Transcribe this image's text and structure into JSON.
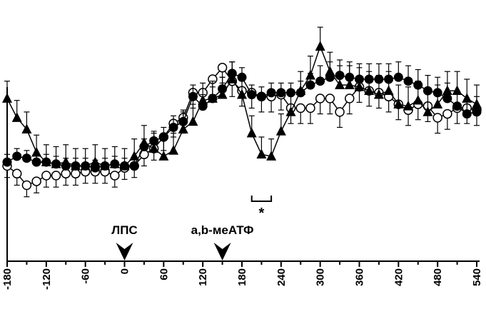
{
  "chart_data": {
    "type": "line",
    "x_ticks": [
      -180,
      -120,
      -60,
      0,
      60,
      120,
      180,
      240,
      300,
      360,
      420,
      480,
      540
    ],
    "xlim": [
      -180,
      540
    ],
    "ylim": [
      0,
      100
    ],
    "grid": false,
    "annotations": {
      "lps_label": "ЛПС",
      "lps_x": 0,
      "atp_label": "a,b-меАТФ",
      "atp_x": 150,
      "significance_label": "*",
      "significance_range": [
        195,
        225
      ]
    },
    "series": [
      {
        "marker": "filled-circle",
        "x": [
          -180,
          -165,
          -150,
          -135,
          -120,
          -105,
          -90,
          -75,
          -60,
          -45,
          -30,
          -15,
          0,
          15,
          30,
          45,
          60,
          75,
          90,
          105,
          120,
          135,
          150,
          165,
          180,
          195,
          210,
          225,
          240,
          255,
          270,
          285,
          300,
          315,
          330,
          345,
          360,
          375,
          390,
          405,
          420,
          435,
          450,
          465,
          480,
          495,
          510,
          525,
          540
        ],
        "y": [
          27,
          30,
          29,
          27,
          27,
          26,
          25,
          25,
          25,
          24,
          25,
          26,
          25,
          25,
          35,
          38,
          40,
          45,
          48,
          61,
          56,
          60,
          65,
          73,
          71,
          62,
          61,
          63,
          63,
          63,
          63,
          67,
          69,
          71,
          72,
          71,
          70,
          70,
          70,
          70,
          71,
          69,
          67,
          64,
          63,
          60,
          56,
          52,
          53
        ],
        "err": [
          4,
          4,
          4,
          4,
          4,
          4,
          4,
          4,
          4,
          4,
          4,
          4,
          4,
          4,
          4,
          4,
          5,
          6,
          6,
          6,
          6,
          6,
          6,
          6,
          5,
          5,
          5,
          5,
          5,
          5,
          6,
          6,
          8,
          8,
          8,
          8,
          8,
          8,
          8,
          8,
          8,
          8,
          8,
          8,
          8,
          8,
          8,
          8,
          8
        ]
      },
      {
        "marker": "open-circle",
        "x": [
          -180,
          -165,
          -150,
          -135,
          -120,
          -105,
          -90,
          -75,
          -60,
          -45,
          -30,
          -15,
          0,
          15,
          30,
          45,
          60,
          75,
          90,
          105,
          120,
          135,
          150,
          165,
          180,
          195,
          210,
          225,
          240,
          255,
          270,
          285,
          300,
          315,
          330,
          345,
          360,
          375,
          390,
          405,
          420,
          435,
          450,
          465,
          480,
          495,
          510,
          525,
          540
        ],
        "y": [
          25,
          21,
          15,
          17,
          20,
          20,
          21,
          21,
          22,
          22,
          22,
          20,
          24,
          25,
          31,
          34,
          40,
          47,
          50,
          63,
          63,
          70,
          76,
          69,
          64,
          63,
          61,
          61,
          62,
          55,
          55,
          55,
          60,
          60,
          53,
          60,
          66,
          64,
          63,
          61,
          57,
          54,
          57,
          56,
          50,
          52,
          55,
          55,
          54
        ],
        "err": [
          6,
          6,
          6,
          6,
          6,
          6,
          6,
          6,
          6,
          6,
          6,
          6,
          6,
          6,
          6,
          6,
          7,
          7,
          8,
          8,
          8,
          8,
          8,
          8,
          8,
          8,
          8,
          8,
          8,
          8,
          8,
          8,
          8,
          8,
          8,
          8,
          8,
          8,
          8,
          8,
          8,
          8,
          8,
          8,
          8,
          8,
          8,
          8,
          8
        ]
      },
      {
        "marker": "filled-triangle",
        "x": [
          -180,
          -165,
          -150,
          -135,
          -120,
          -105,
          -90,
          -75,
          -60,
          -45,
          -30,
          -15,
          0,
          15,
          30,
          45,
          60,
          75,
          90,
          105,
          120,
          135,
          150,
          165,
          180,
          195,
          210,
          225,
          240,
          255,
          270,
          285,
          300,
          315,
          330,
          345,
          360,
          375,
          390,
          405,
          420,
          435,
          450,
          465,
          480,
          495,
          510,
          525,
          540
        ],
        "y": [
          60,
          50,
          44,
          32,
          27,
          26,
          27,
          25,
          25,
          27,
          25,
          26,
          25,
          30,
          37,
          34,
          30,
          33,
          44,
          48,
          59,
          60,
          62,
          70,
          62,
          42,
          31,
          30,
          43,
          53,
          64,
          72,
          87,
          74,
          67,
          67,
          66,
          64,
          62,
          64,
          57,
          56,
          59,
          53,
          57,
          64,
          64,
          60,
          57
        ],
        "err": [
          9,
          9,
          9,
          9,
          9,
          9,
          9,
          9,
          9,
          9,
          9,
          9,
          9,
          9,
          9,
          9,
          9,
          9,
          9,
          9,
          9,
          9,
          9,
          9,
          9,
          9,
          9,
          9,
          9,
          9,
          10,
          10,
          10,
          10,
          10,
          10,
          10,
          10,
          10,
          10,
          10,
          10,
          10,
          10,
          10,
          10,
          10,
          10,
          10
        ]
      }
    ]
  }
}
